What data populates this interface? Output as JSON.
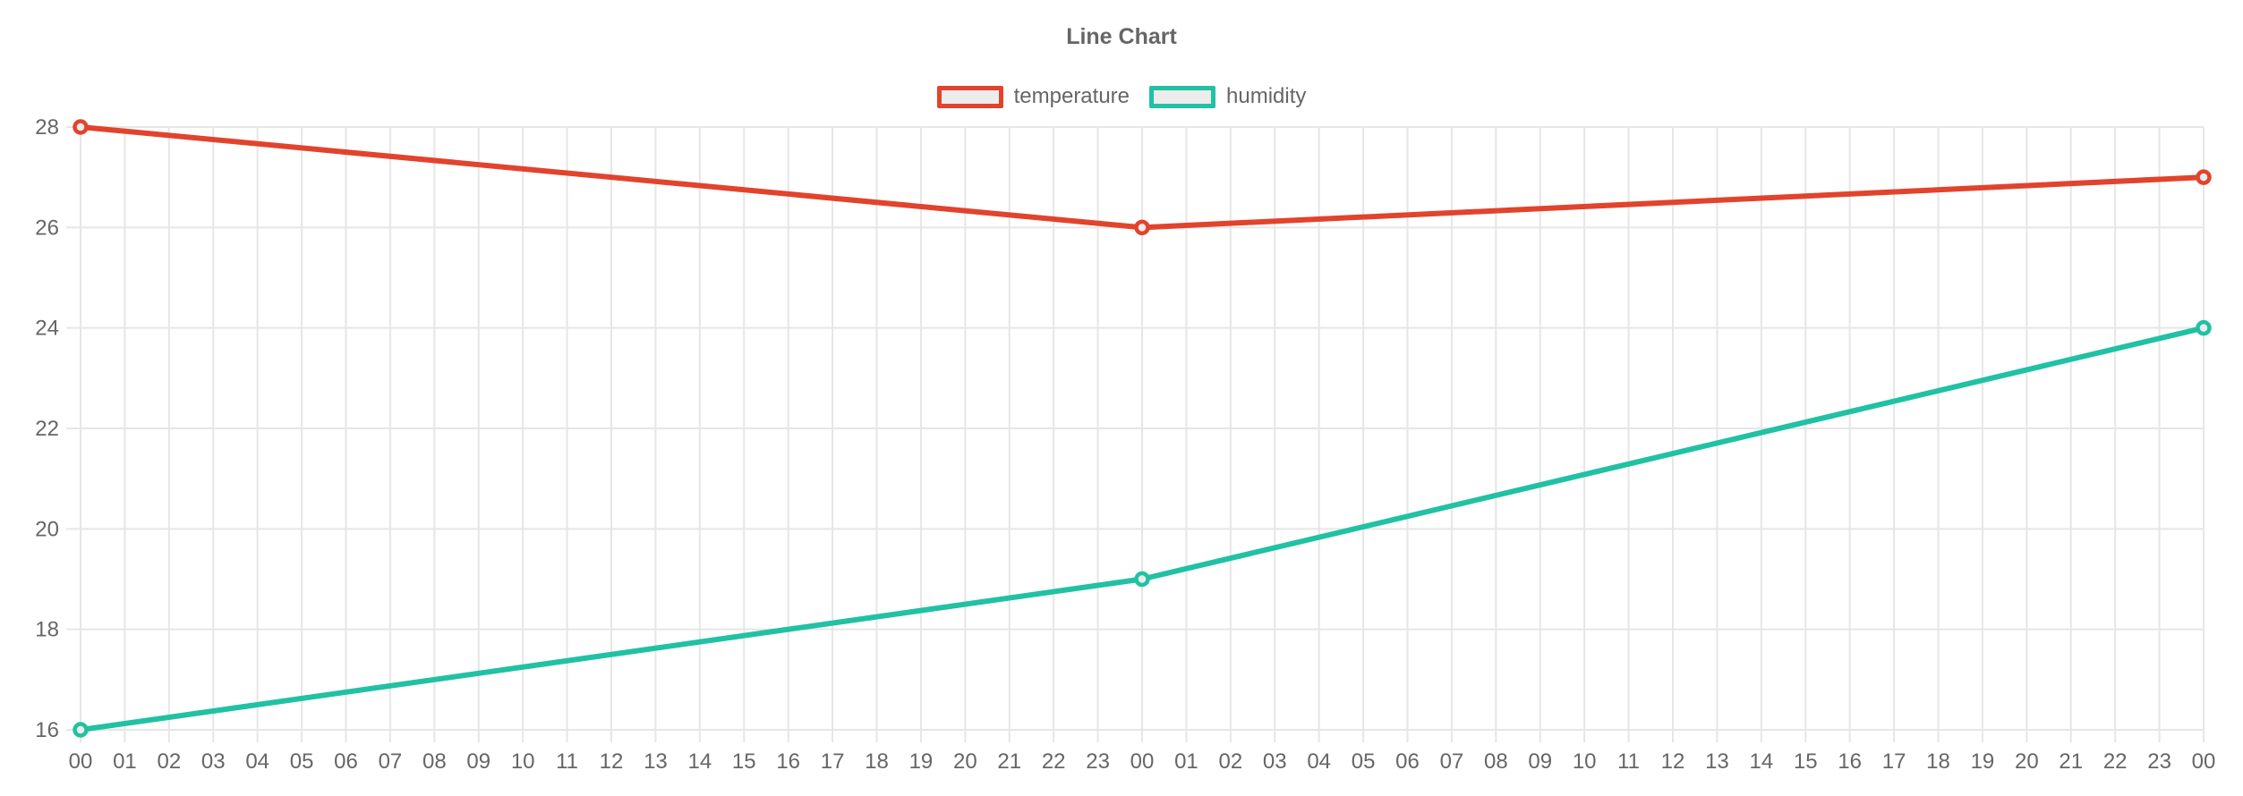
{
  "chart_data": {
    "type": "line",
    "title": "Line Chart",
    "legend_position": "top",
    "grid": true,
    "x_tick_labels": [
      "00",
      "01",
      "02",
      "03",
      "04",
      "05",
      "06",
      "07",
      "08",
      "09",
      "10",
      "11",
      "12",
      "13",
      "14",
      "15",
      "16",
      "17",
      "18",
      "19",
      "20",
      "21",
      "22",
      "23",
      "00",
      "01",
      "02",
      "03",
      "04",
      "05",
      "06",
      "07",
      "08",
      "09",
      "10",
      "11",
      "12",
      "13",
      "14",
      "15",
      "16",
      "17",
      "18",
      "19",
      "20",
      "21",
      "22",
      "23",
      "00"
    ],
    "y_ticks": [
      16,
      18,
      20,
      22,
      24,
      26,
      28
    ],
    "ylim": [
      16,
      28
    ],
    "series": [
      {
        "name": "temperature",
        "color": "#e2432c",
        "x_indices": [
          0,
          24,
          48
        ],
        "values": [
          28,
          26,
          27
        ]
      },
      {
        "name": "humidity",
        "color": "#21c1a3",
        "x_indices": [
          0,
          24,
          48
        ],
        "values": [
          16,
          19,
          24
        ]
      }
    ]
  },
  "colors": {
    "text": "#666666",
    "grid": "#e6e6e6",
    "background": "#ffffff",
    "legend_box_fill": "#ececec",
    "point_fill": "#ececec"
  }
}
